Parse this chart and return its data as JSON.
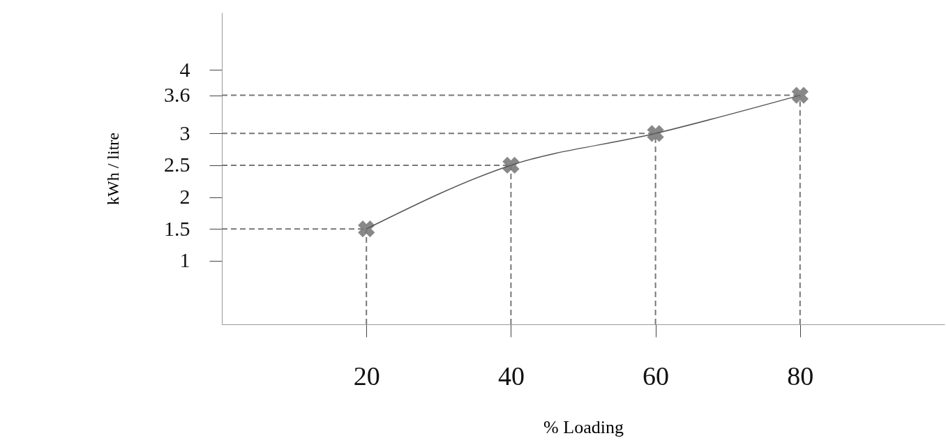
{
  "chart_data": {
    "type": "line",
    "xlabel": "% Loading",
    "ylabel": "kWh / litre",
    "x": [
      20,
      40,
      60,
      80
    ],
    "series": [
      {
        "color": "#555555",
        "values": [
          1.5,
          2.5,
          3,
          3.6
        ]
      },
      {
        "color": "#777777",
        "line_style": "dashed",
        "marker": "none",
        "x": [
          20,
          20
        ],
        "values": [
          0,
          1.5
        ]
      },
      {
        "color": "#777777",
        "line_style": "dashed",
        "marker": "none",
        "x": [
          40,
          40
        ],
        "values": [
          0,
          2.5
        ]
      },
      {
        "color": "#777777",
        "line_style": "dashed",
        "marker": "none",
        "x": [
          60,
          60
        ],
        "values": [
          0,
          3
        ]
      },
      {
        "color": "#777777",
        "line_style": "dashed",
        "marker": "none",
        "x": [
          80,
          80
        ],
        "values": [
          0,
          3.6
        ]
      },
      {
        "color": "#777777",
        "line_style": "dashed",
        "marker": "none",
        "x": [
          0,
          20
        ],
        "values": [
          1.5,
          1.5
        ]
      },
      {
        "color": "#777777",
        "line_style": "dashed",
        "marker": "none",
        "x": [
          0,
          40
        ],
        "values": [
          2.5,
          2.5
        ]
      },
      {
        "color": "#777777",
        "line_style": "dashed",
        "marker": "none",
        "x": [
          0,
          60
        ],
        "values": [
          3,
          3
        ]
      },
      {
        "color": "#777777",
        "line_style": "dashed",
        "marker": "none",
        "x": [
          0,
          80
        ],
        "values": [
          3.6,
          3.6
        ]
      }
    ],
    "xlim": [
      0,
      100
    ],
    "ylim": [
      0,
      4.9
    ],
    "xticks": [
      20,
      40,
      60,
      80
    ],
    "yticks": [
      1,
      1.5,
      2,
      2.5,
      3,
      3.6,
      4
    ],
    "marker": "cross",
    "grid": false
  }
}
